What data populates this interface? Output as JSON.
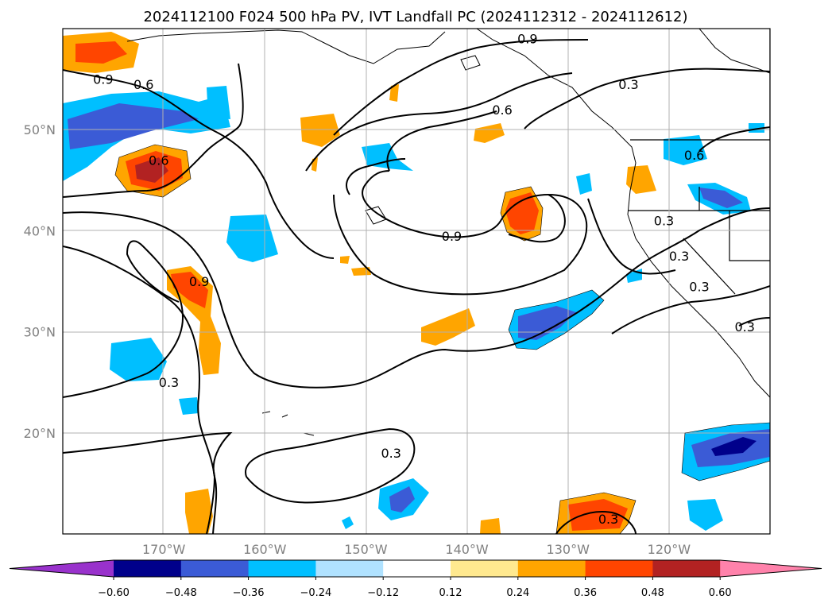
{
  "map": {
    "title": "2024112100 F024 500 hPa PV, IVT Landfall PC (2024112312 - 2024112612)",
    "projection": "PlateCarree",
    "extent": {
      "lon_min": -180,
      "lon_max": -110,
      "lat_min": 10,
      "lat_max": 60
    },
    "gridlines": true,
    "lat_ticks": [
      {
        "value": 50,
        "label": "50°N"
      },
      {
        "value": 40,
        "label": "40°N"
      },
      {
        "value": 30,
        "label": "30°N"
      },
      {
        "value": 20,
        "label": "20°N"
      }
    ],
    "lon_ticks": [
      {
        "value": -170,
        "label": "170°W"
      },
      {
        "value": -160,
        "label": "160°W"
      },
      {
        "value": -150,
        "label": "150°W"
      },
      {
        "value": -140,
        "label": "140°W"
      },
      {
        "value": -130,
        "label": "130°W"
      },
      {
        "value": -120,
        "label": "120°W"
      }
    ],
    "contour_labels": [
      {
        "text": "0.9",
        "lon": -176,
        "lat": 55
      },
      {
        "text": "0.6",
        "lon": -172,
        "lat": 54.5
      },
      {
        "text": "0.6",
        "lon": -170.5,
        "lat": 47
      },
      {
        "text": "0.9",
        "lon": -166.5,
        "lat": 35
      },
      {
        "text": "0.3",
        "lon": -169.5,
        "lat": 25
      },
      {
        "text": "0.9",
        "lon": -134,
        "lat": 59
      },
      {
        "text": "0.6",
        "lon": -136.5,
        "lat": 52
      },
      {
        "text": "0.3",
        "lon": -124,
        "lat": 54.5
      },
      {
        "text": "0.9",
        "lon": -141.5,
        "lat": 39.5
      },
      {
        "text": "0.6",
        "lon": -117.5,
        "lat": 47.5
      },
      {
        "text": "0.3",
        "lon": -120.5,
        "lat": 41
      },
      {
        "text": "0.3",
        "lon": -119,
        "lat": 37.5
      },
      {
        "text": "0.3",
        "lon": -117,
        "lat": 34.5
      },
      {
        "text": "0.3",
        "lon": -112.5,
        "lat": 30.5
      },
      {
        "text": "0.3",
        "lon": -147.5,
        "lat": 18
      },
      {
        "text": "0.3",
        "lon": -126,
        "lat": 11.5
      }
    ],
    "colorbar": {
      "ticks": [
        "−0.60",
        "−0.48",
        "−0.36",
        "−0.24",
        "−0.12",
        "0.12",
        "0.24",
        "0.36",
        "0.48",
        "0.60"
      ],
      "colors": [
        "#9932cc",
        "#00008b",
        "#3b5bd6",
        "#00bfff",
        "#b0e2ff",
        "#ffffff",
        "#ffe98f",
        "#ffa500",
        "#ff4500",
        "#b22222",
        "#ff82ab"
      ]
    }
  }
}
